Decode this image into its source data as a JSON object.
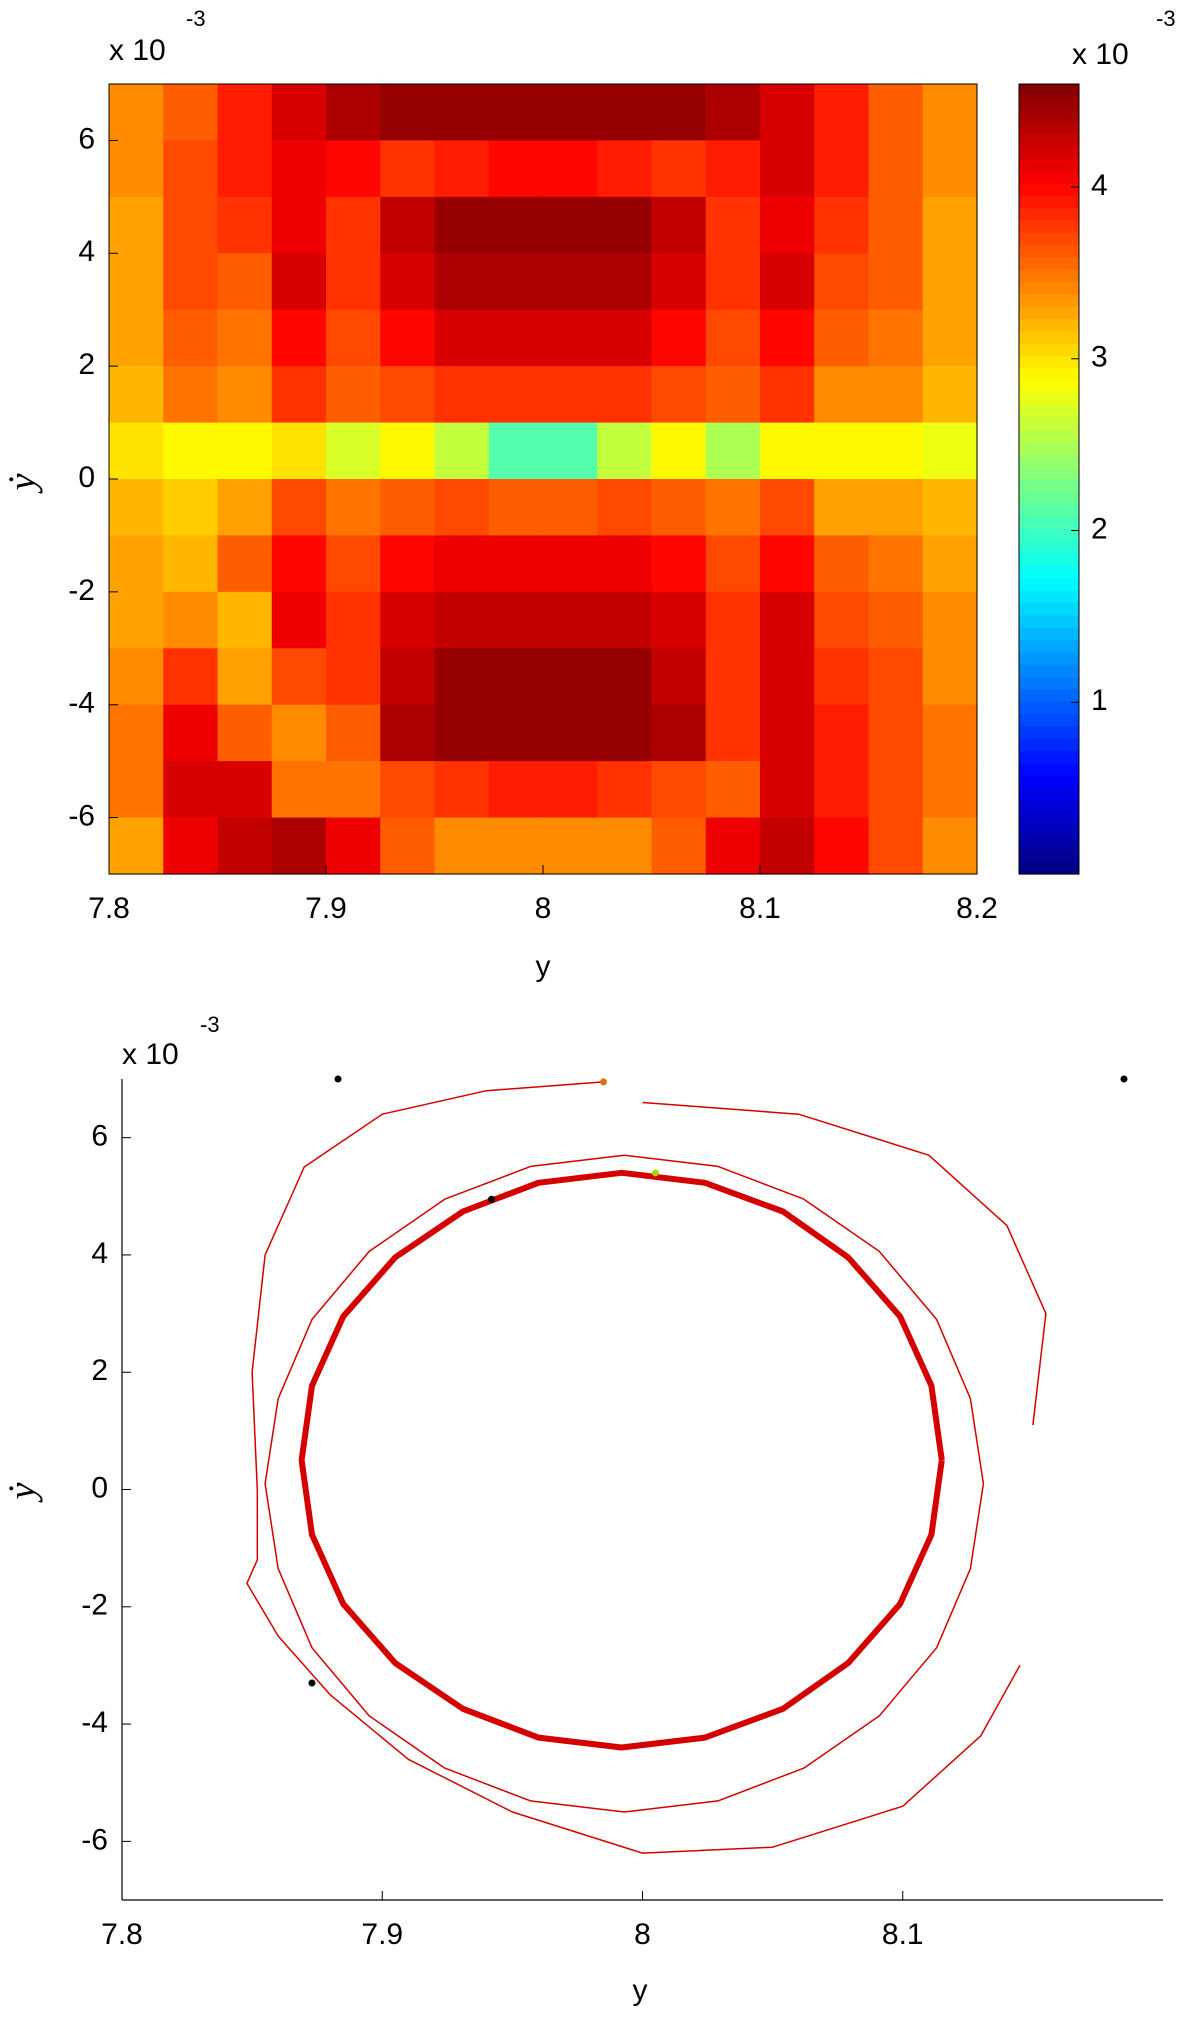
{
  "chart_data": [
    {
      "type": "heatmap",
      "xlabel": "y",
      "ylabel": "ẏ",
      "y_multiplier": {
        "base": "x 10",
        "exponent": "-3"
      },
      "xlim": [
        7.8,
        8.2
      ],
      "xticks": [
        7.8,
        7.9,
        8,
        8.1,
        8.2
      ],
      "ylim": [
        -7,
        7
      ],
      "yticks": [
        -6,
        -4,
        -2,
        0,
        2,
        4,
        6
      ],
      "colormap": "jet",
      "colorbar": {
        "lim": [
          0,
          4.6
        ],
        "ticks": [
          1,
          2,
          3,
          4
        ],
        "multiplier": {
          "base": "x 10",
          "exponent": "-3"
        }
      },
      "x": [
        7.8125,
        7.8375,
        7.8625,
        7.8875,
        7.9125,
        7.9375,
        7.9625,
        7.9875,
        8.0125,
        8.0375,
        8.0625,
        8.0875,
        8.1125,
        8.1375,
        8.1625,
        8.1875
      ],
      "y": [
        6.5,
        5.5,
        4.5,
        3.5,
        2.5,
        1.5,
        0.5,
        -0.5,
        -1.5,
        -2.5,
        -3.5,
        -4.5,
        -5.5,
        -6.5
      ],
      "z": [
        [
          3.4,
          3.6,
          3.9,
          4.2,
          4.4,
          4.5,
          4.5,
          4.5,
          4.5,
          4.5,
          4.5,
          4.4,
          4.2,
          3.9,
          3.6,
          3.4
        ],
        [
          3.4,
          3.7,
          3.9,
          4.1,
          4.0,
          3.8,
          3.9,
          4.0,
          4.0,
          3.9,
          3.8,
          3.9,
          4.2,
          3.9,
          3.6,
          3.4
        ],
        [
          3.3,
          3.7,
          3.8,
          4.1,
          3.8,
          4.3,
          4.5,
          4.5,
          4.5,
          4.5,
          4.3,
          3.8,
          4.1,
          3.8,
          3.6,
          3.3
        ],
        [
          3.3,
          3.7,
          3.6,
          4.2,
          3.8,
          4.2,
          4.4,
          4.4,
          4.4,
          4.4,
          4.2,
          3.8,
          4.2,
          3.7,
          3.6,
          3.3
        ],
        [
          3.3,
          3.6,
          3.5,
          4.0,
          3.7,
          4.0,
          4.2,
          4.2,
          4.2,
          4.2,
          4.0,
          3.7,
          4.0,
          3.6,
          3.5,
          3.3
        ],
        [
          3.2,
          3.5,
          3.4,
          3.8,
          3.6,
          3.7,
          3.8,
          3.8,
          3.8,
          3.8,
          3.7,
          3.6,
          3.8,
          3.4,
          3.4,
          3.2
        ],
        [
          3.0,
          2.9,
          2.9,
          3.0,
          2.7,
          2.9,
          2.6,
          2.1,
          2.1,
          2.6,
          2.9,
          2.5,
          2.9,
          2.9,
          2.9,
          2.8
        ],
        [
          3.2,
          3.1,
          3.3,
          3.7,
          3.5,
          3.6,
          3.7,
          3.6,
          3.6,
          3.7,
          3.6,
          3.5,
          3.7,
          3.3,
          3.3,
          3.2
        ],
        [
          3.3,
          3.2,
          3.6,
          4.0,
          3.7,
          4.0,
          4.1,
          4.1,
          4.1,
          4.1,
          4.0,
          3.7,
          4.0,
          3.6,
          3.5,
          3.3
        ],
        [
          3.3,
          3.4,
          3.2,
          4.1,
          3.8,
          4.2,
          4.3,
          4.3,
          4.3,
          4.3,
          4.2,
          3.8,
          4.2,
          3.7,
          3.6,
          3.4
        ],
        [
          3.4,
          3.8,
          3.3,
          3.7,
          3.8,
          4.3,
          4.5,
          4.5,
          4.5,
          4.5,
          4.3,
          3.8,
          4.2,
          3.8,
          3.7,
          3.4
        ],
        [
          3.5,
          4.1,
          3.6,
          3.4,
          3.6,
          4.4,
          4.5,
          4.5,
          4.5,
          4.5,
          4.4,
          3.8,
          4.2,
          3.9,
          3.7,
          3.5
        ],
        [
          3.5,
          4.2,
          4.2,
          3.5,
          3.5,
          3.7,
          3.8,
          3.9,
          3.9,
          3.8,
          3.7,
          3.6,
          4.2,
          3.9,
          3.7,
          3.5
        ],
        [
          3.3,
          4.1,
          4.3,
          4.4,
          4.1,
          3.6,
          3.4,
          3.4,
          3.4,
          3.4,
          3.6,
          4.1,
          4.3,
          4.0,
          3.7,
          3.4
        ]
      ]
    },
    {
      "type": "line",
      "xlabel": "y",
      "ylabel": "ẏ",
      "y_multiplier": {
        "base": "x 10",
        "exponent": "-3"
      },
      "xlim": [
        7.8,
        8.2
      ],
      "xticks": [
        7.8,
        7.9,
        8,
        8.1
      ],
      "ylim": [
        -7,
        7
      ],
      "yticks": [
        -6,
        -4,
        -2,
        0,
        2,
        4,
        6
      ],
      "series": [
        {
          "color": "#d40000",
          "line_width": 1.5,
          "x": [
            7.985,
            7.94,
            7.9,
            7.87,
            7.855,
            7.85,
            7.852,
            7.852,
            7.848,
            7.86,
            7.88,
            7.91,
            7.95,
            8.0,
            8.05,
            8.1,
            8.13,
            8.145,
            null,
            8.0,
            8.06,
            8.11,
            8.14,
            8.155,
            8.15,
            null,
            8.131,
            8.126,
            8.113,
            8.091,
            8.062,
            8.029,
            7.993,
            7.957,
            7.924,
            7.895,
            7.873,
            7.86,
            7.855,
            7.86,
            7.873,
            7.895,
            7.924,
            7.957,
            7.993,
            8.029,
            8.062,
            8.091,
            8.113,
            8.126,
            8.131
          ],
          "y": [
            6.95,
            6.8,
            6.4,
            5.5,
            4.0,
            2.0,
            0,
            -1.2,
            -1.6,
            -2.5,
            -3.5,
            -4.6,
            -5.5,
            -6.2,
            -6.1,
            -5.4,
            -4.2,
            -3.0,
            null,
            6.6,
            6.4,
            5.7,
            4.5,
            3.0,
            1.1,
            null,
            0.1,
            1.55,
            2.9,
            4.06,
            4.95,
            5.51,
            5.7,
            5.51,
            4.95,
            4.06,
            2.9,
            1.55,
            0.1,
            -1.35,
            -2.7,
            -3.86,
            -4.75,
            -5.31,
            -5.5,
            -5.31,
            -4.75,
            -3.86,
            -2.7,
            -1.35,
            0.1
          ]
        },
        {
          "color": "#d40000",
          "line_width": 6,
          "x": [
            8.115,
            8.111,
            8.099,
            8.079,
            8.054,
            8.024,
            7.992,
            7.96,
            7.931,
            7.905,
            7.885,
            7.873,
            7.869,
            7.873,
            7.885,
            7.905,
            7.931,
            7.96,
            7.992,
            8.024,
            8.054,
            8.079,
            8.099,
            8.111,
            8.115
          ],
          "y": [
            0.5,
            1.77,
            2.95,
            3.96,
            4.74,
            5.23,
            5.4,
            5.23,
            4.74,
            3.96,
            2.95,
            1.77,
            0.5,
            -0.77,
            -1.95,
            -2.96,
            -3.74,
            -4.23,
            -4.4,
            -4.23,
            -3.74,
            -2.96,
            -1.95,
            -0.77,
            0.5
          ]
        }
      ],
      "points": {
        "x": [
          7.883,
          8.185,
          7.985,
          8.005,
          7.942,
          7.873
        ],
        "y": [
          7.0,
          7.0,
          6.95,
          5.4,
          4.95,
          -3.3
        ],
        "colors": [
          "#000000",
          "#000000",
          "#e07000",
          "#a0e000",
          "#000000",
          "#000000"
        ]
      }
    }
  ]
}
